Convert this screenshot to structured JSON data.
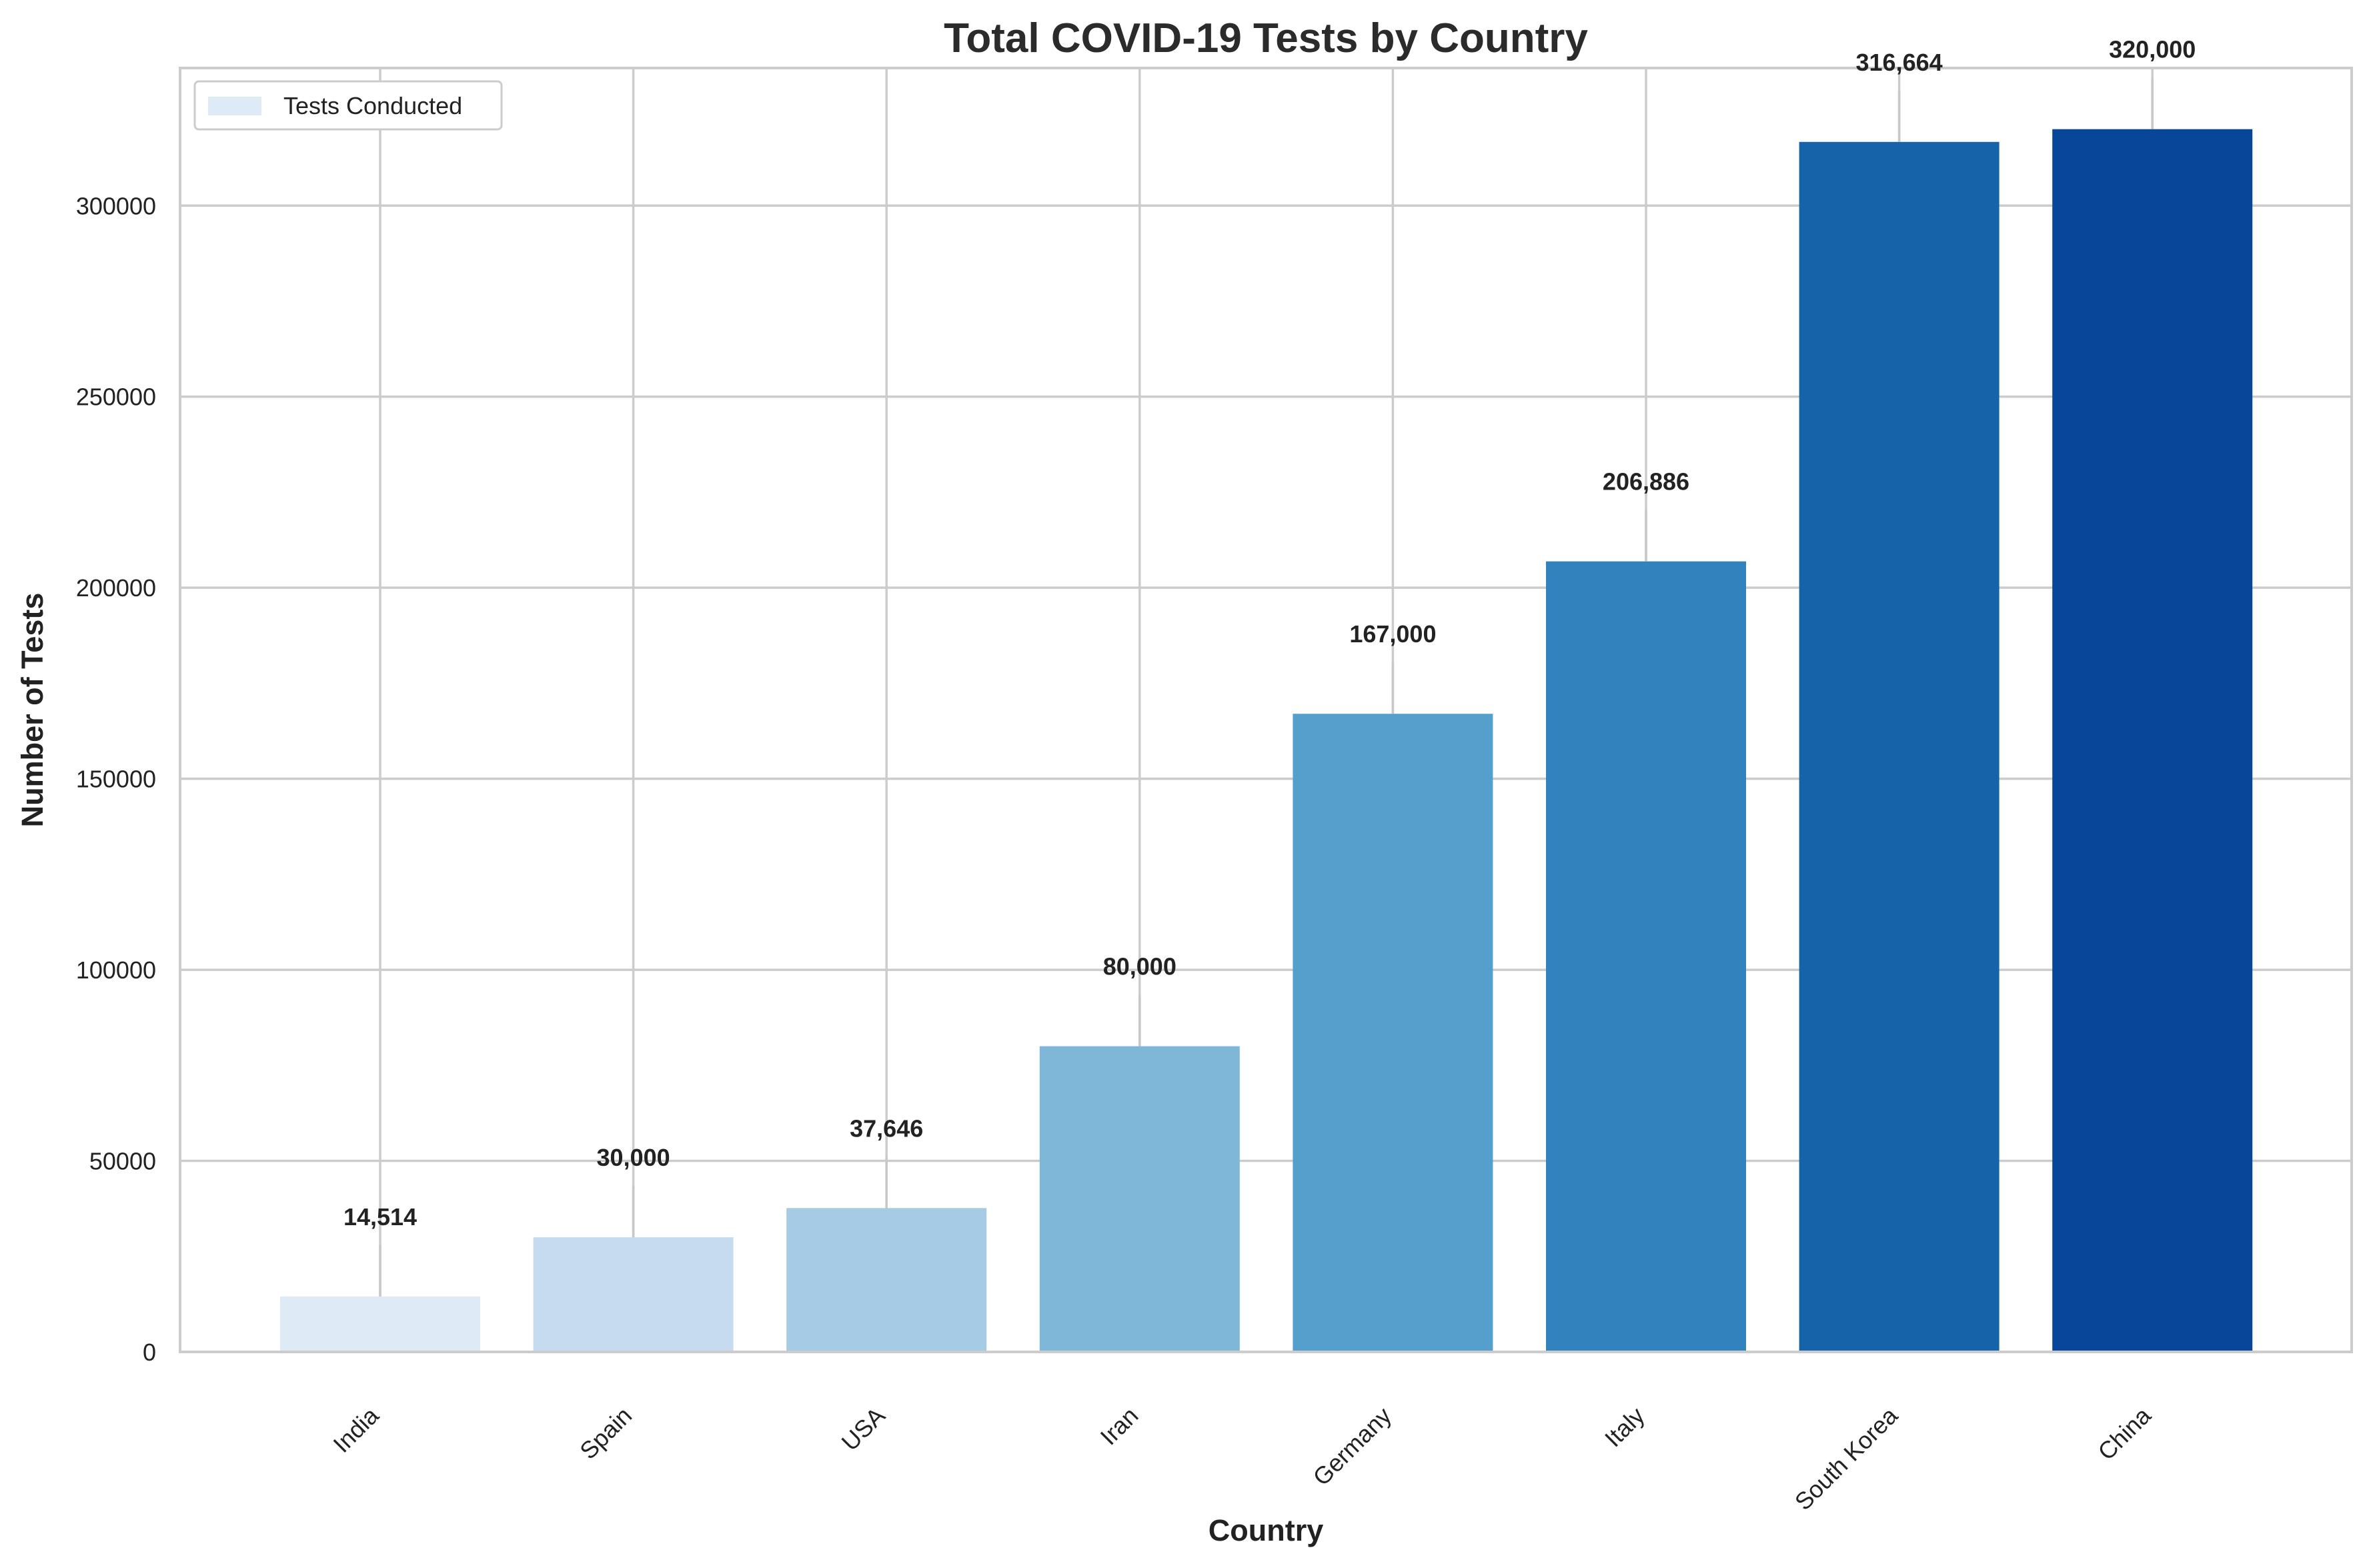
{
  "chart_data": {
    "type": "bar",
    "title": "Total COVID-19 Tests by Country",
    "xlabel": "Country",
    "ylabel": "Number of Tests",
    "categories": [
      "India",
      "Spain",
      "USA",
      "Iran",
      "Germany",
      "Italy",
      "South Korea",
      "China"
    ],
    "values": [
      14514,
      30000,
      37646,
      80000,
      167000,
      206886,
      316664,
      320000
    ],
    "data_labels": [
      "14,514",
      "30,000",
      "37,646",
      "80,000",
      "167,000",
      "206,886",
      "316,664",
      "320,000"
    ],
    "bar_colors": [
      "#deebf7",
      "#c6dbef",
      "#a6cbe4",
      "#7fb7d9",
      "#559fcd",
      "#3182bd",
      "#1763aa",
      "#08469a"
    ],
    "ylim": [
      0,
      336000
    ],
    "yticks": [
      0,
      50000,
      100000,
      150000,
      200000,
      250000,
      300000
    ],
    "ytick_labels": [
      "0",
      "50000",
      "100000",
      "150000",
      "200000",
      "250000",
      "300000"
    ],
    "legend": {
      "label": "Tests Conducted",
      "placement": "top-left",
      "swatch_color": "#deebf7"
    },
    "grid": true,
    "grid_color": "#cccccc"
  }
}
